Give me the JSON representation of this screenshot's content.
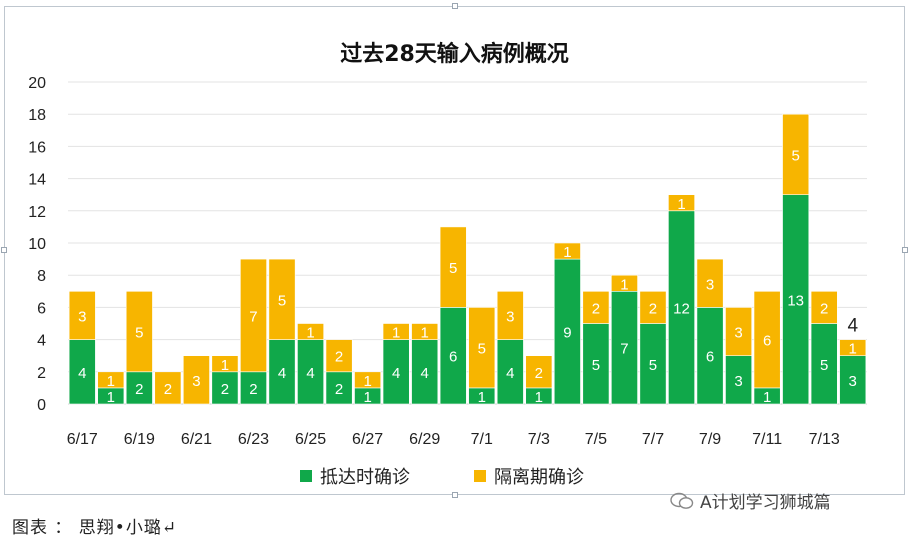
{
  "chart_data": {
    "type": "bar",
    "stacked": true,
    "title": "过去28天输入病例概况",
    "categories": [
      "6/17",
      "6/18",
      "6/19",
      "6/20",
      "6/21",
      "6/22",
      "6/23",
      "6/24",
      "6/25",
      "6/26",
      "6/27",
      "6/28",
      "6/29",
      "6/30",
      "7/1",
      "7/2",
      "7/3",
      "7/4",
      "7/5",
      "7/6",
      "7/7",
      "7/8",
      "7/9",
      "7/10",
      "7/11",
      "7/12",
      "7/13",
      "7/14"
    ],
    "x_tick_labels": [
      "6/17",
      "6/19",
      "6/21",
      "6/23",
      "6/25",
      "6/27",
      "6/29",
      "7/1",
      "7/3",
      "7/5",
      "7/7",
      "7/9",
      "7/11",
      "7/13"
    ],
    "series": [
      {
        "name": "抵达时确诊",
        "color": "#10a84a",
        "values": [
          4,
          1,
          2,
          0,
          0,
          2,
          2,
          4,
          4,
          2,
          1,
          4,
          4,
          6,
          1,
          4,
          1,
          9,
          5,
          7,
          5,
          12,
          6,
          3,
          1,
          13,
          5,
          3
        ],
        "labels": [
          "4",
          "1",
          "2",
          "",
          "",
          "2",
          "2",
          "4",
          "4",
          "2",
          "1",
          "4",
          "4",
          "6",
          "1",
          "4",
          "1",
          "9",
          "5",
          "7",
          "5",
          "12",
          "6",
          "3",
          "1",
          "13",
          "5",
          "3"
        ]
      },
      {
        "name": "隔离期确诊",
        "color": "#f7b500",
        "values": [
          3,
          1,
          5,
          2,
          3,
          1,
          7,
          5,
          1,
          2,
          1,
          1,
          1,
          5,
          5,
          3,
          2,
          1,
          2,
          1,
          2,
          1,
          3,
          3,
          6,
          5,
          2,
          1
        ],
        "labels": [
          "3",
          "1",
          "5",
          "2",
          "3",
          "1",
          "7",
          "5",
          "1",
          "2",
          "1",
          "1",
          "1",
          "5",
          "5",
          "3",
          "2",
          "1",
          "2",
          "1",
          "2",
          "1",
          "3",
          "3",
          "6",
          "5",
          "2",
          "1"
        ]
      }
    ],
    "total_labels": {
      "27": "4"
    },
    "ylim": [
      0,
      20
    ],
    "y_ticks": [
      "0",
      "2",
      "4",
      "6",
      "8",
      "10",
      "12",
      "14",
      "16",
      "18",
      "20"
    ],
    "grid": true,
    "legend_position": "bottom"
  },
  "caption": "图表 ： 思翔•小璐↵",
  "watermark": "A计划学习狮城篇"
}
